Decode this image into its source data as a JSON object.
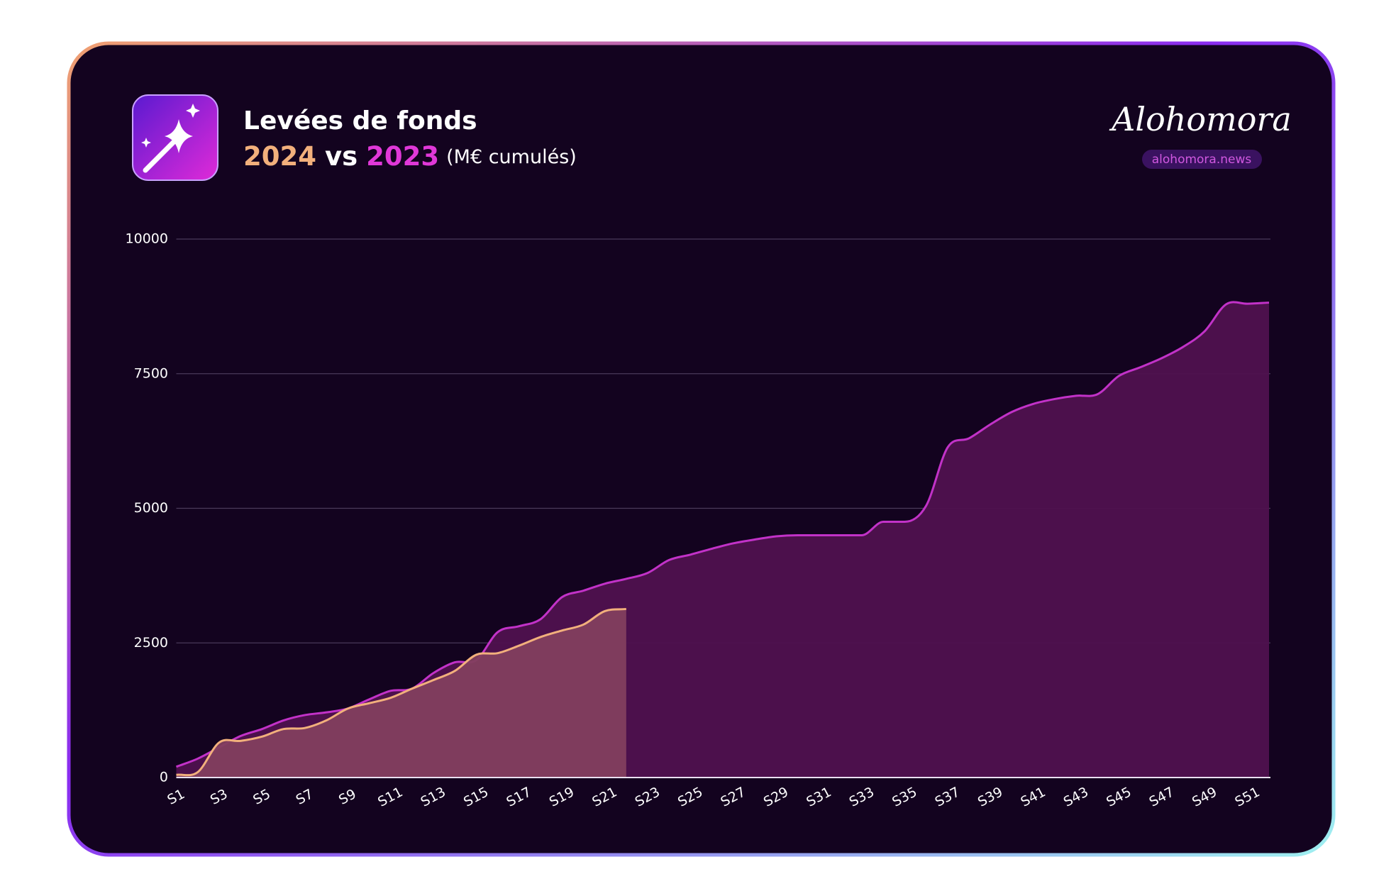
{
  "chart_data": {
    "type": "area",
    "title": "Levées de fonds",
    "subtitle_connector": "vs",
    "subtitle_unit": "(M€ cumulés)",
    "brand": "Alohomora",
    "brand_url": "alohomora.news",
    "categories": [
      "S1",
      null,
      "S3",
      null,
      "S5",
      null,
      "S7",
      null,
      "S9",
      null,
      "S11",
      null,
      "S13",
      null,
      "S15",
      null,
      "S17",
      null,
      "S19",
      null,
      "S21",
      null,
      "S23",
      null,
      "S25",
      null,
      "S27",
      null,
      "S29",
      null,
      "S31",
      null,
      "S33",
      null,
      "S35",
      null,
      "S37",
      null,
      "S39",
      null,
      "S41",
      null,
      "S43",
      null,
      "S45",
      null,
      "S47",
      null,
      "S49",
      null,
      "S51",
      null
    ],
    "series": [
      {
        "name": "2023",
        "color": "#c232c8",
        "fill": "#4f114f",
        "values": [
          200,
          350,
          560,
          770,
          900,
          1060,
          1160,
          1210,
          1280,
          1450,
          1610,
          1650,
          1940,
          2140,
          2180,
          2700,
          2810,
          2940,
          3350,
          3470,
          3600,
          3690,
          3800,
          4040,
          4140,
          4250,
          4350,
          4420,
          4480,
          4500,
          4500,
          4500,
          4500,
          4750,
          4750,
          5050,
          6130,
          6300,
          6560,
          6790,
          6940,
          7030,
          7090,
          7120,
          7460,
          7620,
          7790,
          8000,
          8290,
          8790,
          8800,
          8820
        ]
      },
      {
        "name": "2024",
        "color": "#f2b07c",
        "fill": "#823f5e",
        "values": [
          50,
          100,
          650,
          680,
          760,
          900,
          920,
          1060,
          1280,
          1380,
          1480,
          1650,
          1810,
          1980,
          2280,
          2310,
          2450,
          2610,
          2730,
          2840,
          3090,
          3130,
          null,
          null,
          null,
          null,
          null,
          null,
          null,
          null,
          null,
          null,
          null,
          null,
          null,
          null,
          null,
          null,
          null,
          null,
          null,
          null,
          null,
          null,
          null,
          null,
          null,
          null,
          null,
          null,
          null,
          null
        ]
      }
    ],
    "ylim": [
      0,
      10000
    ],
    "yticks": [
      0,
      2500,
      5000,
      7500,
      10000
    ],
    "grid": true
  }
}
